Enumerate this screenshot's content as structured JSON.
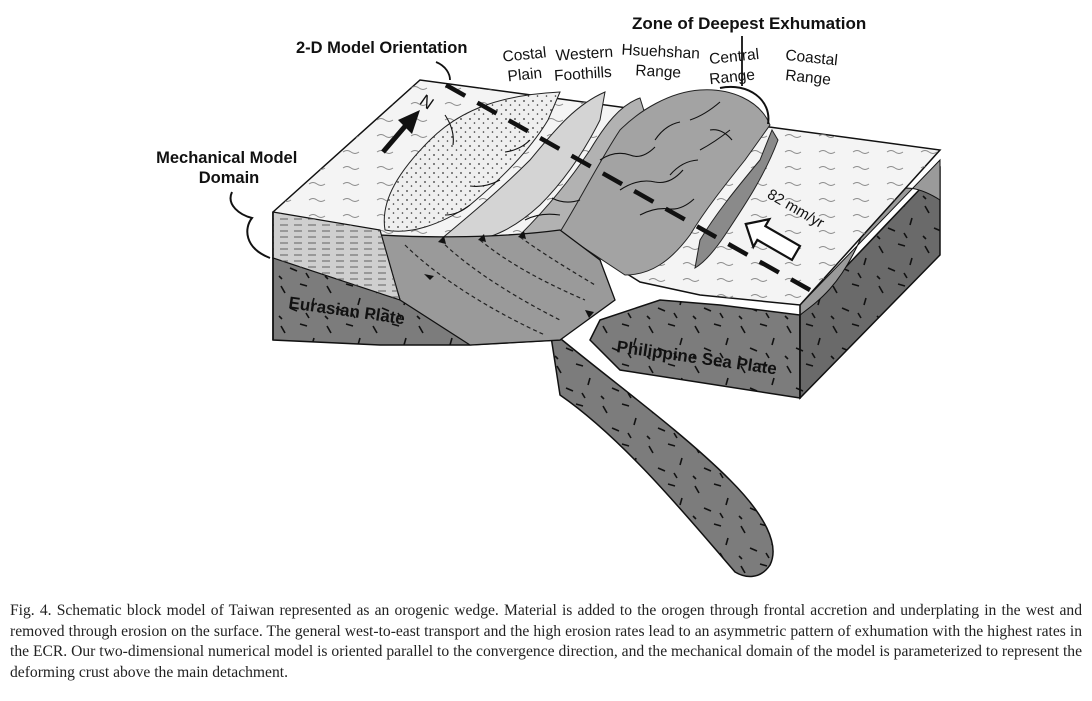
{
  "labels": {
    "zone_deepest_exhumation": "Zone of Deepest Exhumation",
    "model_orientation": "2-D Model Orientation",
    "mechanical_domain_line1": "Mechanical Model",
    "mechanical_domain_line2": "Domain",
    "north": "N",
    "velocity": "82 mm/yr",
    "eurasian_plate": "Eurasian Plate",
    "philippine_plate": "Philippine Sea Plate"
  },
  "regions": [
    {
      "line1": "Costal",
      "line2": "Plain"
    },
    {
      "line1": "Western",
      "line2": "Foothills"
    },
    {
      "line1": "Hsuehshan",
      "line2": "Range"
    },
    {
      "line1": "Central",
      "line2": "Range"
    },
    {
      "line1": "Coastal",
      "line2": "Range"
    }
  ],
  "caption": "Fig. 4. Schematic block model of Taiwan represented as an orogenic wedge. Material is added to the orogen through frontal accretion and underplating in the west and removed through erosion on the surface. The general west-to-east transport and the high erosion rates lead to an asymmetric pattern of exhumation with the highest rates in the ECR. Our two-dimensional numerical model is oriented parallel to the convergence direction, and the mechanical domain of the model is parameterized to represent the deforming crust above the main detachment."
}
